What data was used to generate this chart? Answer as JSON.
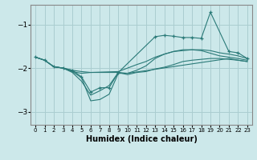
{
  "xlabel": "Humidex (Indice chaleur)",
  "background_color": "#cce8ea",
  "grid_color": "#aacdd0",
  "line_color": "#2a7a78",
  "xlim": [
    -0.5,
    23.5
  ],
  "ylim": [
    -3.3,
    -0.55
  ],
  "yticks": [
    -3,
    -2,
    -1
  ],
  "lines": [
    {
      "x": [
        0,
        1,
        2,
        3,
        4,
        5,
        6,
        7,
        8,
        9,
        13,
        14,
        15,
        16,
        17,
        18,
        19,
        21,
        22,
        23
      ],
      "y": [
        -1.75,
        -1.82,
        -1.97,
        -2.0,
        -2.05,
        -2.2,
        -2.55,
        -2.45,
        -2.45,
        -2.1,
        -1.28,
        -1.25,
        -1.27,
        -1.3,
        -1.3,
        -1.32,
        -0.72,
        -1.62,
        -1.65,
        -1.78
      ],
      "marker": true
    },
    {
      "x": [
        0,
        1,
        2,
        3,
        4,
        5,
        6,
        9,
        10,
        11,
        12,
        13,
        14,
        15,
        16,
        17,
        18,
        19,
        20,
        21,
        22,
        23
      ],
      "y": [
        -1.75,
        -1.82,
        -1.97,
        -2.0,
        -2.05,
        -2.08,
        -2.1,
        -2.08,
        -2.0,
        -1.92,
        -1.85,
        -1.75,
        -1.68,
        -1.62,
        -1.6,
        -1.58,
        -1.58,
        -1.6,
        -1.65,
        -1.68,
        -1.72,
        -1.78
      ],
      "marker": false
    },
    {
      "x": [
        0,
        1,
        2,
        3,
        4,
        5,
        6,
        7,
        8,
        9,
        10,
        11,
        12,
        13,
        14,
        15,
        16,
        17,
        18,
        19,
        20,
        21,
        22,
        23
      ],
      "y": [
        -1.75,
        -1.82,
        -1.97,
        -2.0,
        -2.08,
        -2.12,
        -2.1,
        -2.1,
        -2.1,
        -2.1,
        -2.15,
        -2.1,
        -2.08,
        -2.02,
        -1.98,
        -1.92,
        -1.85,
        -1.82,
        -1.8,
        -1.78,
        -1.78,
        -1.8,
        -1.82,
        -1.85
      ],
      "marker": false
    },
    {
      "x": [
        0,
        1,
        2,
        3,
        4,
        5,
        6,
        7,
        8,
        9,
        10,
        11,
        12,
        13,
        14,
        15,
        16,
        17,
        18,
        20,
        21,
        22,
        23
      ],
      "y": [
        -1.75,
        -1.82,
        -1.97,
        -2.0,
        -2.1,
        -2.3,
        -2.62,
        -2.52,
        -2.4,
        -2.1,
        -2.12,
        -2.05,
        -1.95,
        -1.78,
        -1.68,
        -1.62,
        -1.58,
        -1.58,
        -1.6,
        -1.72,
        -1.75,
        -1.78,
        -1.82
      ],
      "marker": false
    },
    {
      "x": [
        2,
        3,
        4,
        5,
        6,
        7,
        8,
        9,
        10,
        21,
        22,
        23
      ],
      "y": [
        -1.97,
        -2.0,
        -2.08,
        -2.22,
        -2.75,
        -2.72,
        -2.6,
        -2.12,
        -2.12,
        -1.78,
        -1.82,
        -1.85
      ],
      "marker": false
    }
  ]
}
